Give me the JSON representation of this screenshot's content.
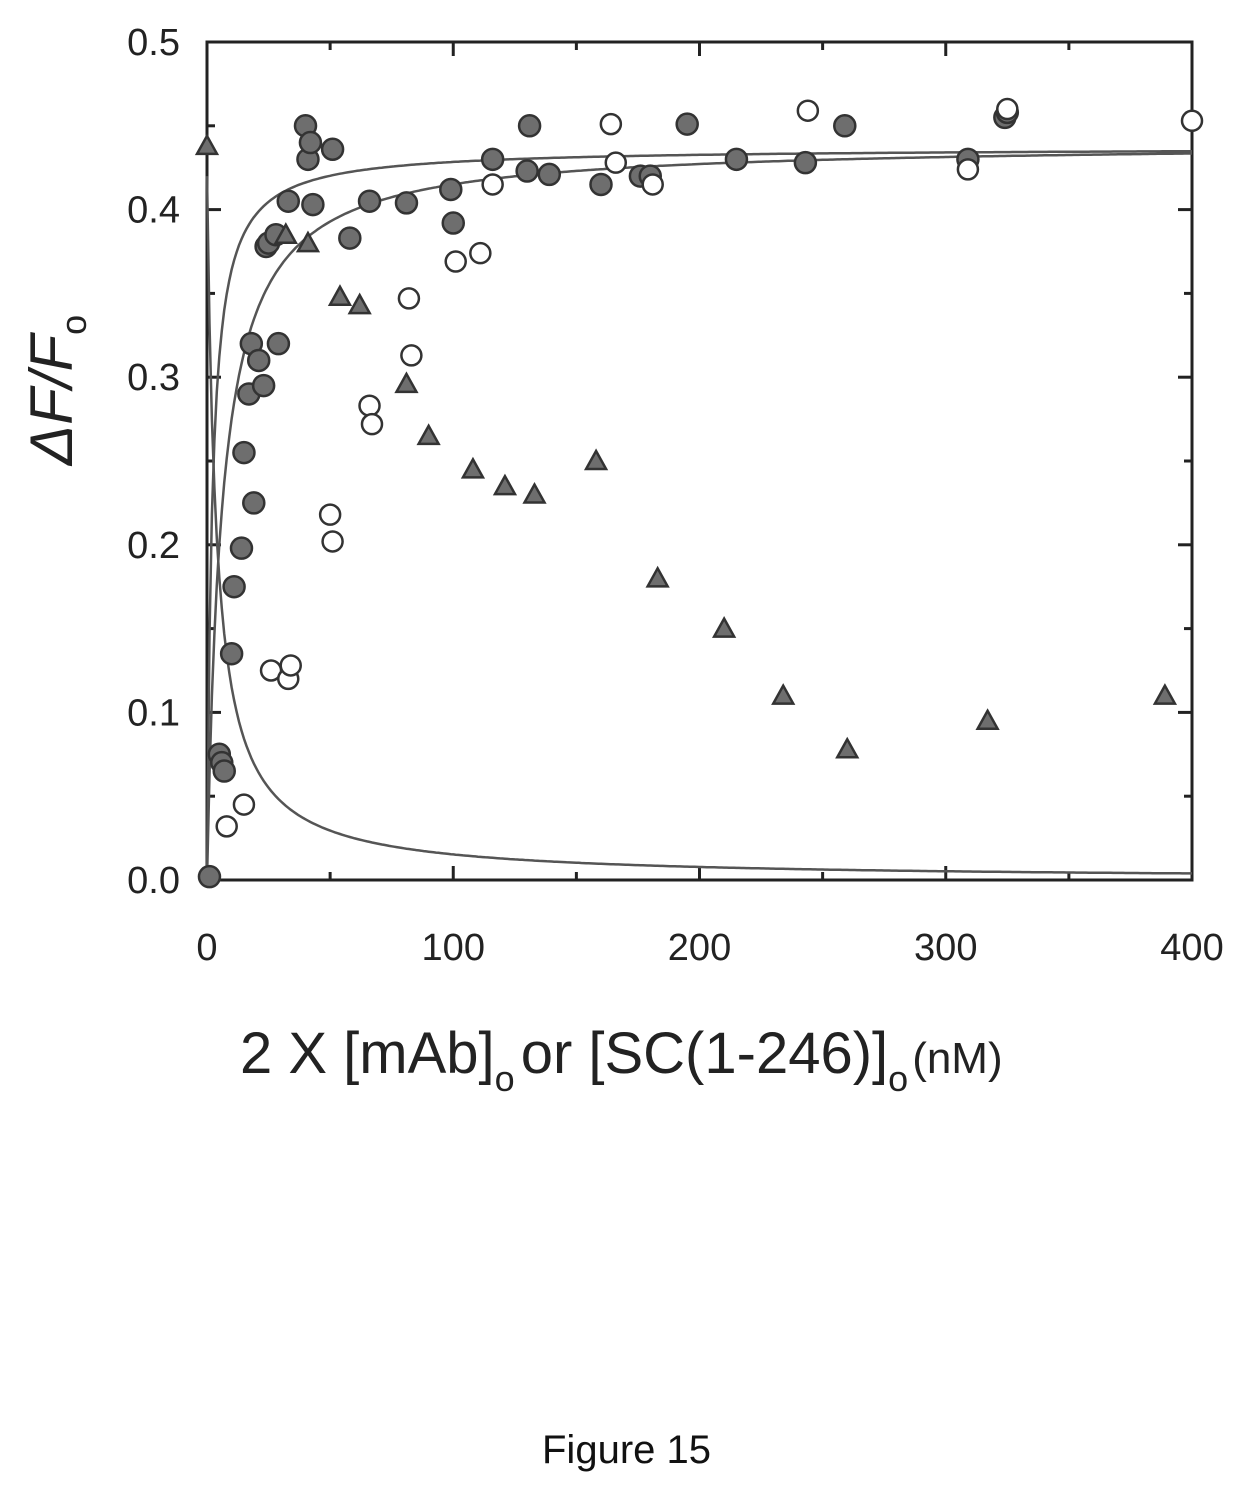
{
  "figure_caption": "Figure 15",
  "chart_data": {
    "type": "scatter",
    "xlim": [
      0,
      400
    ],
    "ylim": [
      0,
      0.5
    ],
    "x_ticks": [
      "0",
      "100",
      "200",
      "300",
      "400"
    ],
    "y_ticks": [
      "0.0",
      "0.1",
      "0.2",
      "0.3",
      "0.4",
      "0.5"
    ],
    "ylabel": {
      "main": "ΔF/F",
      "sub": "o"
    },
    "xlabel": {
      "p1": "2 X [mAb]",
      "s1": "o",
      "p2": "or [SC(1-246)]",
      "s2": "o",
      "p3": "(nM)"
    },
    "grid": false,
    "legend": "none",
    "colors": {
      "filled": "#6e6e6e",
      "open": "#ffffff",
      "stroke": "#333333",
      "curve": "#555555"
    },
    "series": [
      {
        "marker": "filled-circle",
        "x": [
          1,
          5,
          6,
          7,
          10,
          11,
          14,
          15,
          17,
          18,
          19,
          21,
          23,
          24,
          25,
          28,
          29,
          33,
          40,
          41,
          42,
          43,
          51,
          58,
          66,
          81,
          99,
          100,
          116,
          130,
          131,
          139,
          160,
          176,
          180,
          195,
          215,
          243,
          259,
          309,
          324,
          325
        ],
        "y": [
          0.002,
          0.075,
          0.07,
          0.065,
          0.135,
          0.175,
          0.198,
          0.255,
          0.29,
          0.32,
          0.225,
          0.31,
          0.295,
          0.378,
          0.38,
          0.385,
          0.32,
          0.405,
          0.45,
          0.43,
          0.44,
          0.403,
          0.436,
          0.383,
          0.405,
          0.404,
          0.412,
          0.392,
          0.43,
          0.423,
          0.45,
          0.421,
          0.415,
          0.42,
          0.42,
          0.451,
          0.43,
          0.428,
          0.45,
          0.43,
          0.455,
          0.458
        ]
      },
      {
        "marker": "open-circle",
        "x": [
          8,
          15,
          26,
          33,
          34,
          66,
          67,
          50,
          51,
          82,
          83,
          101,
          111,
          116,
          164,
          166,
          181,
          244,
          309,
          325,
          400
        ],
        "y": [
          0.032,
          0.045,
          0.125,
          0.12,
          0.128,
          0.283,
          0.272,
          0.218,
          0.202,
          0.347,
          0.313,
          0.369,
          0.374,
          0.415,
          0.451,
          0.428,
          0.415,
          0.459,
          0.424,
          0.46,
          0.453
        ]
      },
      {
        "marker": "filled-triangle",
        "x": [
          0,
          32,
          41,
          54,
          62,
          81,
          90,
          108,
          121,
          133,
          158,
          183,
          210,
          234,
          260,
          317,
          389
        ],
        "y": [
          0.438,
          0.385,
          0.38,
          0.348,
          0.343,
          0.296,
          0.265,
          0.245,
          0.235,
          0.23,
          0.25,
          0.18,
          0.15,
          0.11,
          0.078,
          0.095,
          0.11
        ]
      }
    ],
    "fit_curves": [
      {
        "name": "",
        "kind": "binding",
        "amax": 0.437,
        "kd": 2.0,
        "offset": 0
      },
      {
        "name": "",
        "kind": "binding",
        "amax": 0.44,
        "kd": 6.0,
        "offset": 0
      },
      {
        "name": "",
        "kind": "competition",
        "amax": 0.42,
        "b0": 0.43,
        "kd": 3.0,
        "ki": 3.3
      }
    ]
  }
}
